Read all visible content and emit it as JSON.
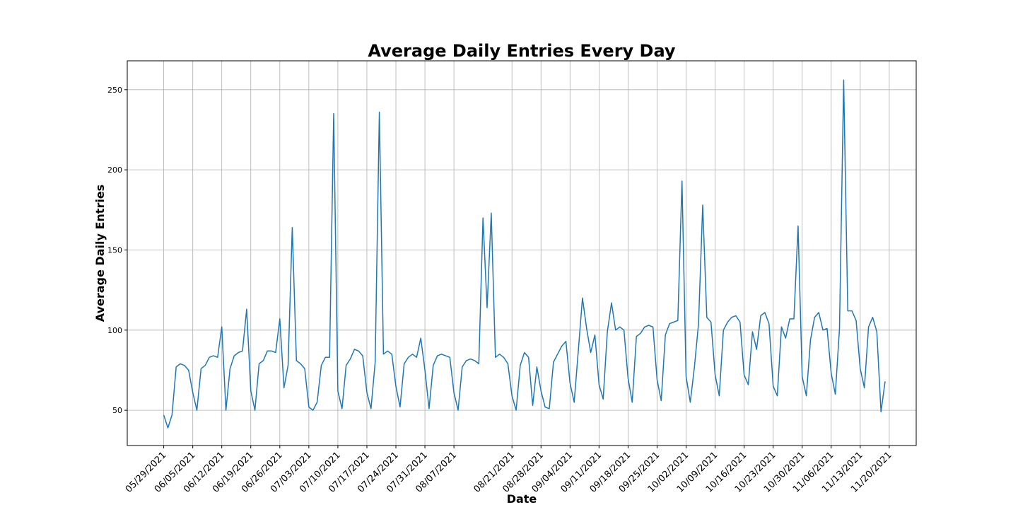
{
  "chart_data": {
    "type": "line",
    "title": "Average Daily Entries Every Day",
    "xlabel": "Date",
    "ylabel": "Average Daily Entries",
    "grid": true,
    "line_color": "#1f77b4",
    "start_date": "2021-05-29",
    "x_ticks": [
      "05/29/2021",
      "06/05/2021",
      "06/12/2021",
      "06/19/2021",
      "06/26/2021",
      "07/03/2021",
      "07/10/2021",
      "07/17/2021",
      "07/24/2021",
      "07/31/2021",
      "08/07/2021",
      "08/21/2021",
      "08/28/2021",
      "09/04/2021",
      "09/11/2021",
      "09/18/2021",
      "09/25/2021",
      "10/02/2021",
      "10/09/2021",
      "10/16/2021",
      "10/23/2021",
      "10/30/2021",
      "11/06/2021",
      "11/13/2021",
      "11/20/2021"
    ],
    "y_ticks": [
      50,
      100,
      150,
      200,
      250
    ],
    "ylim": [
      28,
      268
    ],
    "xlim": [
      -8.8,
      181.5
    ],
    "series": [
      {
        "x": [
          0,
          1,
          2,
          3,
          4,
          5,
          6,
          7,
          8,
          9,
          10,
          11,
          12,
          13,
          14,
          15,
          16,
          17,
          18,
          19,
          20,
          21,
          22,
          23,
          24,
          25,
          26,
          27,
          28,
          29,
          30,
          31,
          32,
          33,
          34,
          35,
          36,
          37,
          38,
          39,
          40,
          41,
          42,
          43,
          44,
          45,
          46,
          47,
          48,
          49,
          50,
          51,
          52,
          53,
          54,
          55,
          56,
          57,
          58,
          59,
          60,
          61,
          62,
          63,
          64,
          65,
          66,
          67,
          68,
          69,
          70,
          71,
          72,
          73,
          74,
          75,
          76,
          77,
          78,
          79,
          80,
          81,
          82,
          83,
          84,
          85,
          86,
          87,
          88,
          89,
          90,
          91,
          92,
          93,
          94,
          95,
          96,
          97,
          98,
          99,
          100,
          101,
          102,
          103,
          104,
          105,
          106,
          107,
          108,
          109,
          110,
          111,
          112,
          113,
          114,
          115,
          116,
          117,
          118,
          119,
          120,
          121,
          122,
          123,
          124,
          125,
          126,
          127,
          128,
          129,
          130,
          131,
          132,
          133,
          134,
          135,
          136,
          137,
          138,
          139,
          140,
          141,
          142,
          143,
          144,
          145,
          146,
          147,
          148,
          149,
          150,
          151,
          152,
          153,
          154,
          155,
          156,
          157,
          158,
          159,
          160,
          161,
          162,
          163,
          164,
          165,
          166,
          167,
          168,
          169,
          170,
          171,
          172,
          173,
          174
        ],
        "values": [
          47,
          39,
          47,
          77,
          79,
          78,
          75,
          61,
          50,
          76,
          78,
          83,
          84,
          83,
          102,
          50,
          76,
          84,
          86,
          87,
          113,
          62,
          50,
          79,
          81,
          87,
          87,
          86,
          107,
          64,
          78,
          164,
          81,
          79,
          76,
          52,
          50,
          55,
          78,
          83,
          83,
          235,
          62,
          51,
          78,
          82,
          88,
          87,
          84,
          61,
          51,
          80,
          236,
          85,
          87,
          85,
          65,
          52,
          79,
          83,
          85,
          83,
          95,
          75,
          51,
          78,
          84,
          85,
          84,
          83,
          61,
          50,
          77,
          81,
          82,
          81,
          79,
          170,
          114,
          173,
          83,
          85,
          83,
          79,
          59,
          50,
          78,
          86,
          83,
          53,
          77,
          62,
          52,
          51,
          80,
          85,
          90,
          93,
          67,
          55,
          87,
          120,
          101,
          86,
          97,
          66,
          57,
          99,
          117,
          100,
          102,
          100,
          70,
          55,
          96,
          98,
          102,
          103,
          102,
          69,
          56,
          97,
          104,
          105,
          106,
          193,
          71,
          55,
          77,
          104,
          178,
          108,
          105,
          72,
          59,
          100,
          105,
          108,
          109,
          105,
          72,
          66,
          99,
          88,
          109,
          111,
          104,
          65,
          59,
          102,
          95,
          107,
          107,
          165,
          71,
          59,
          94,
          108,
          111,
          100,
          101,
          73,
          60,
          101,
          256,
          112,
          112,
          106,
          76,
          64,
          102,
          108,
          99,
          49,
          68
        ]
      }
    ]
  }
}
